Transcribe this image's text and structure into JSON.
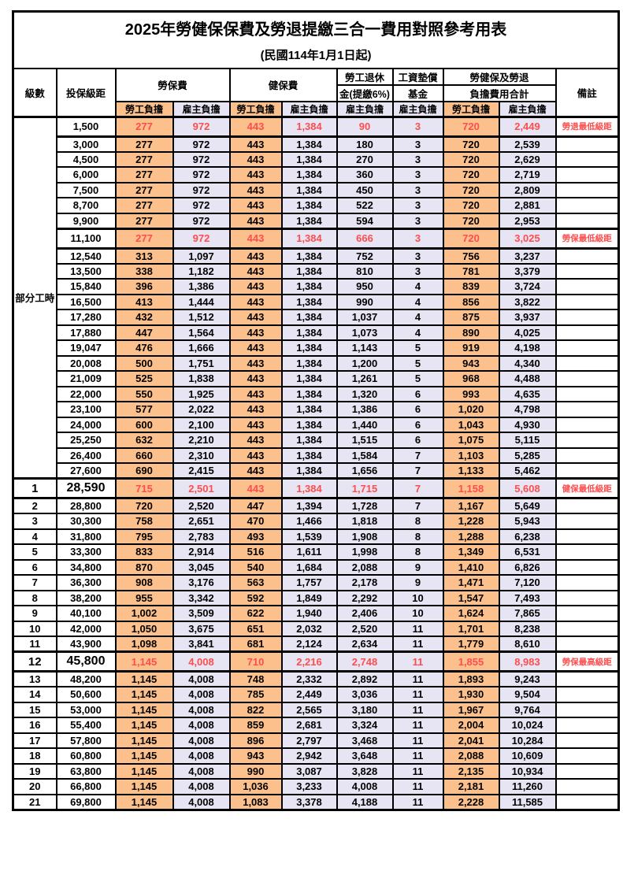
{
  "title": {
    "main": "2025年勞健保保費及勞退提繳三合一費用對照參考用表",
    "sub": "(民國114年1月1日起)"
  },
  "colors": {
    "employee_bg": "#FBC08C",
    "employer_bg": "#E7E4F4",
    "highlight_text": "#FF4D4D",
    "grid": "#000000"
  },
  "header": {
    "level": "級數",
    "bracket": "投保級距",
    "labor": "勞保費",
    "health": "健保費",
    "pension_line1": "勞工退休",
    "pension_line2": "金(提繳6%)",
    "wage_line1": "工資墊償",
    "wage_line2": "基金",
    "total_line1": "勞健保及勞退",
    "total_line2": "負擔費用合計",
    "note": "備註",
    "employee": "勞工負擔",
    "employer": "雇主負擔"
  },
  "table": {
    "part_time_label": "部分工時",
    "part_time_span": 23,
    "column_keys": [
      "labor-employee",
      "labor-employer",
      "health-employee",
      "health-employer",
      "pension-employer",
      "wagefund-employer",
      "total-employee",
      "total-employer"
    ],
    "rows": [
      {
        "level": "",
        "bracket": "1,500",
        "values": [
          "277",
          "972",
          "443",
          "1,384",
          "90",
          "3",
          "720",
          "2,449"
        ],
        "note": "勞退最低級距",
        "red": true,
        "big": false
      },
      {
        "level": "",
        "bracket": "3,000",
        "values": [
          "277",
          "972",
          "443",
          "1,384",
          "180",
          "3",
          "720",
          "2,539"
        ],
        "note": "",
        "red": false,
        "big": false
      },
      {
        "level": "",
        "bracket": "4,500",
        "values": [
          "277",
          "972",
          "443",
          "1,384",
          "270",
          "3",
          "720",
          "2,629"
        ],
        "note": "",
        "red": false,
        "big": false
      },
      {
        "level": "",
        "bracket": "6,000",
        "values": [
          "277",
          "972",
          "443",
          "1,384",
          "360",
          "3",
          "720",
          "2,719"
        ],
        "note": "",
        "red": false,
        "big": false
      },
      {
        "level": "",
        "bracket": "7,500",
        "values": [
          "277",
          "972",
          "443",
          "1,384",
          "450",
          "3",
          "720",
          "2,809"
        ],
        "note": "",
        "red": false,
        "big": false
      },
      {
        "level": "",
        "bracket": "8,700",
        "values": [
          "277",
          "972",
          "443",
          "1,384",
          "522",
          "3",
          "720",
          "2,881"
        ],
        "note": "",
        "red": false,
        "big": false
      },
      {
        "level": "",
        "bracket": "9,900",
        "values": [
          "277",
          "972",
          "443",
          "1,384",
          "594",
          "3",
          "720",
          "2,953"
        ],
        "note": "",
        "red": false,
        "big": false
      },
      {
        "level": "",
        "bracket": "11,100",
        "values": [
          "277",
          "972",
          "443",
          "1,384",
          "666",
          "3",
          "720",
          "3,025"
        ],
        "note": "勞保最低級距",
        "red": true,
        "big": false
      },
      {
        "level": "",
        "bracket": "12,540",
        "values": [
          "313",
          "1,097",
          "443",
          "1,384",
          "752",
          "3",
          "756",
          "3,237"
        ],
        "note": "",
        "red": false,
        "big": false
      },
      {
        "level": "",
        "bracket": "13,500",
        "values": [
          "338",
          "1,182",
          "443",
          "1,384",
          "810",
          "3",
          "781",
          "3,379"
        ],
        "note": "",
        "red": false,
        "big": false
      },
      {
        "level": "",
        "bracket": "15,840",
        "values": [
          "396",
          "1,386",
          "443",
          "1,384",
          "950",
          "4",
          "839",
          "3,724"
        ],
        "note": "",
        "red": false,
        "big": false
      },
      {
        "level": "",
        "bracket": "16,500",
        "values": [
          "413",
          "1,444",
          "443",
          "1,384",
          "990",
          "4",
          "856",
          "3,822"
        ],
        "note": "",
        "red": false,
        "big": false
      },
      {
        "level": "",
        "bracket": "17,280",
        "values": [
          "432",
          "1,512",
          "443",
          "1,384",
          "1,037",
          "4",
          "875",
          "3,937"
        ],
        "note": "",
        "red": false,
        "big": false
      },
      {
        "level": "",
        "bracket": "17,880",
        "values": [
          "447",
          "1,564",
          "443",
          "1,384",
          "1,073",
          "4",
          "890",
          "4,025"
        ],
        "note": "",
        "red": false,
        "big": false
      },
      {
        "level": "",
        "bracket": "19,047",
        "values": [
          "476",
          "1,666",
          "443",
          "1,384",
          "1,143",
          "5",
          "919",
          "4,198"
        ],
        "note": "",
        "red": false,
        "big": false
      },
      {
        "level": "",
        "bracket": "20,008",
        "values": [
          "500",
          "1,751",
          "443",
          "1,384",
          "1,200",
          "5",
          "943",
          "4,340"
        ],
        "note": "",
        "red": false,
        "big": false
      },
      {
        "level": "",
        "bracket": "21,009",
        "values": [
          "525",
          "1,838",
          "443",
          "1,384",
          "1,261",
          "5",
          "968",
          "4,488"
        ],
        "note": "",
        "red": false,
        "big": false
      },
      {
        "level": "",
        "bracket": "22,000",
        "values": [
          "550",
          "1,925",
          "443",
          "1,384",
          "1,320",
          "6",
          "993",
          "4,635"
        ],
        "note": "",
        "red": false,
        "big": false
      },
      {
        "level": "",
        "bracket": "23,100",
        "values": [
          "577",
          "2,022",
          "443",
          "1,384",
          "1,386",
          "6",
          "1,020",
          "4,798"
        ],
        "note": "",
        "red": false,
        "big": false
      },
      {
        "level": "",
        "bracket": "24,000",
        "values": [
          "600",
          "2,100",
          "443",
          "1,384",
          "1,440",
          "6",
          "1,043",
          "4,930"
        ],
        "note": "",
        "red": false,
        "big": false
      },
      {
        "level": "",
        "bracket": "25,250",
        "values": [
          "632",
          "2,210",
          "443",
          "1,384",
          "1,515",
          "6",
          "1,075",
          "5,115"
        ],
        "note": "",
        "red": false,
        "big": false
      },
      {
        "level": "",
        "bracket": "26,400",
        "values": [
          "660",
          "2,310",
          "443",
          "1,384",
          "1,584",
          "7",
          "1,103",
          "5,285"
        ],
        "note": "",
        "red": false,
        "big": false
      },
      {
        "level": "",
        "bracket": "27,600",
        "values": [
          "690",
          "2,415",
          "443",
          "1,384",
          "1,656",
          "7",
          "1,133",
          "5,462"
        ],
        "note": "",
        "red": false,
        "big": false
      },
      {
        "level": "1",
        "bracket": "28,590",
        "values": [
          "715",
          "2,501",
          "443",
          "1,384",
          "1,715",
          "7",
          "1,158",
          "5,608"
        ],
        "note": "健保最低級距",
        "red": true,
        "big": true
      },
      {
        "level": "2",
        "bracket": "28,800",
        "values": [
          "720",
          "2,520",
          "447",
          "1,394",
          "1,728",
          "7",
          "1,167",
          "5,649"
        ],
        "note": "",
        "red": false,
        "big": false
      },
      {
        "level": "3",
        "bracket": "30,300",
        "values": [
          "758",
          "2,651",
          "470",
          "1,466",
          "1,818",
          "8",
          "1,228",
          "5,943"
        ],
        "note": "",
        "red": false,
        "big": false
      },
      {
        "level": "4",
        "bracket": "31,800",
        "values": [
          "795",
          "2,783",
          "493",
          "1,539",
          "1,908",
          "8",
          "1,288",
          "6,238"
        ],
        "note": "",
        "red": false,
        "big": false
      },
      {
        "level": "5",
        "bracket": "33,300",
        "values": [
          "833",
          "2,914",
          "516",
          "1,611",
          "1,998",
          "8",
          "1,349",
          "6,531"
        ],
        "note": "",
        "red": false,
        "big": false
      },
      {
        "level": "6",
        "bracket": "34,800",
        "values": [
          "870",
          "3,045",
          "540",
          "1,684",
          "2,088",
          "9",
          "1,410",
          "6,826"
        ],
        "note": "",
        "red": false,
        "big": false
      },
      {
        "level": "7",
        "bracket": "36,300",
        "values": [
          "908",
          "3,176",
          "563",
          "1,757",
          "2,178",
          "9",
          "1,471",
          "7,120"
        ],
        "note": "",
        "red": false,
        "big": false
      },
      {
        "level": "8",
        "bracket": "38,200",
        "values": [
          "955",
          "3,342",
          "592",
          "1,849",
          "2,292",
          "10",
          "1,547",
          "7,493"
        ],
        "note": "",
        "red": false,
        "big": false
      },
      {
        "level": "9",
        "bracket": "40,100",
        "values": [
          "1,002",
          "3,509",
          "622",
          "1,940",
          "2,406",
          "10",
          "1,624",
          "7,865"
        ],
        "note": "",
        "red": false,
        "big": false
      },
      {
        "level": "10",
        "bracket": "42,000",
        "values": [
          "1,050",
          "3,675",
          "651",
          "2,032",
          "2,520",
          "11",
          "1,701",
          "8,238"
        ],
        "note": "",
        "red": false,
        "big": false
      },
      {
        "level": "11",
        "bracket": "43,900",
        "values": [
          "1,098",
          "3,841",
          "681",
          "2,124",
          "2,634",
          "11",
          "1,779",
          "8,610"
        ],
        "note": "",
        "red": false,
        "big": false
      },
      {
        "level": "12",
        "bracket": "45,800",
        "values": [
          "1,145",
          "4,008",
          "710",
          "2,216",
          "2,748",
          "11",
          "1,855",
          "8,983"
        ],
        "note": "勞保最高級距",
        "red": true,
        "big": true
      },
      {
        "level": "13",
        "bracket": "48,200",
        "values": [
          "1,145",
          "4,008",
          "748",
          "2,332",
          "2,892",
          "11",
          "1,893",
          "9,243"
        ],
        "note": "",
        "red": false,
        "big": false
      },
      {
        "level": "14",
        "bracket": "50,600",
        "values": [
          "1,145",
          "4,008",
          "785",
          "2,449",
          "3,036",
          "11",
          "1,930",
          "9,504"
        ],
        "note": "",
        "red": false,
        "big": false
      },
      {
        "level": "15",
        "bracket": "53,000",
        "values": [
          "1,145",
          "4,008",
          "822",
          "2,565",
          "3,180",
          "11",
          "1,967",
          "9,764"
        ],
        "note": "",
        "red": false,
        "big": false
      },
      {
        "level": "16",
        "bracket": "55,400",
        "values": [
          "1,145",
          "4,008",
          "859",
          "2,681",
          "3,324",
          "11",
          "2,004",
          "10,024"
        ],
        "note": "",
        "red": false,
        "big": false
      },
      {
        "level": "17",
        "bracket": "57,800",
        "values": [
          "1,145",
          "4,008",
          "896",
          "2,797",
          "3,468",
          "11",
          "2,041",
          "10,284"
        ],
        "note": "",
        "red": false,
        "big": false
      },
      {
        "level": "18",
        "bracket": "60,800",
        "values": [
          "1,145",
          "4,008",
          "943",
          "2,942",
          "3,648",
          "11",
          "2,088",
          "10,609"
        ],
        "note": "",
        "red": false,
        "big": false
      },
      {
        "level": "19",
        "bracket": "63,800",
        "values": [
          "1,145",
          "4,008",
          "990",
          "3,087",
          "3,828",
          "11",
          "2,135",
          "10,934"
        ],
        "note": "",
        "red": false,
        "big": false
      },
      {
        "level": "20",
        "bracket": "66,800",
        "values": [
          "1,145",
          "4,008",
          "1,036",
          "3,233",
          "4,008",
          "11",
          "2,181",
          "11,260"
        ],
        "note": "",
        "red": false,
        "big": false
      },
      {
        "level": "21",
        "bracket": "69,800",
        "values": [
          "1,145",
          "4,008",
          "1,083",
          "3,378",
          "4,188",
          "11",
          "2,228",
          "11,585"
        ],
        "note": "",
        "red": false,
        "big": false
      }
    ]
  }
}
